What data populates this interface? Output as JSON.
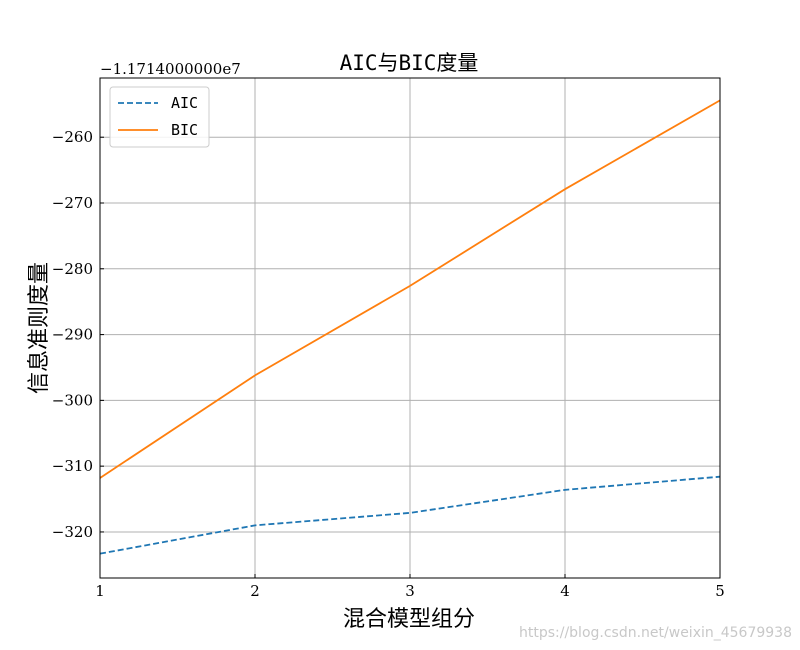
{
  "chart_data": {
    "type": "line",
    "title": "AIC与BIC度量",
    "xlabel": "混合模型组分",
    "ylabel": "信息准则度量",
    "y_offset_label": "−1.1714000000e7",
    "x": [
      1,
      2,
      3,
      4,
      5
    ],
    "xlim": [
      1,
      5
    ],
    "ylim": [
      -327,
      -251
    ],
    "x_ticks": [
      1,
      2,
      3,
      4,
      5
    ],
    "y_ticks": [
      -320,
      -310,
      -300,
      -290,
      -280,
      -270,
      -260
    ],
    "y_tick_labels": [
      "−320",
      "−310",
      "−300",
      "−290",
      "−280",
      "−270",
      "−260"
    ],
    "grid": true,
    "legend_position": "top-left",
    "series": [
      {
        "name": "AIC",
        "values": [
          -323.3,
          -319.0,
          -317.1,
          -313.6,
          -311.6
        ],
        "color": "#1f77b4",
        "style": "dashed"
      },
      {
        "name": "BIC",
        "values": [
          -311.8,
          -296.2,
          -282.6,
          -267.9,
          -254.4
        ],
        "color": "#ff7f0e",
        "style": "solid"
      }
    ]
  },
  "watermark": "https://blog.csdn.net/weixin_45679938"
}
